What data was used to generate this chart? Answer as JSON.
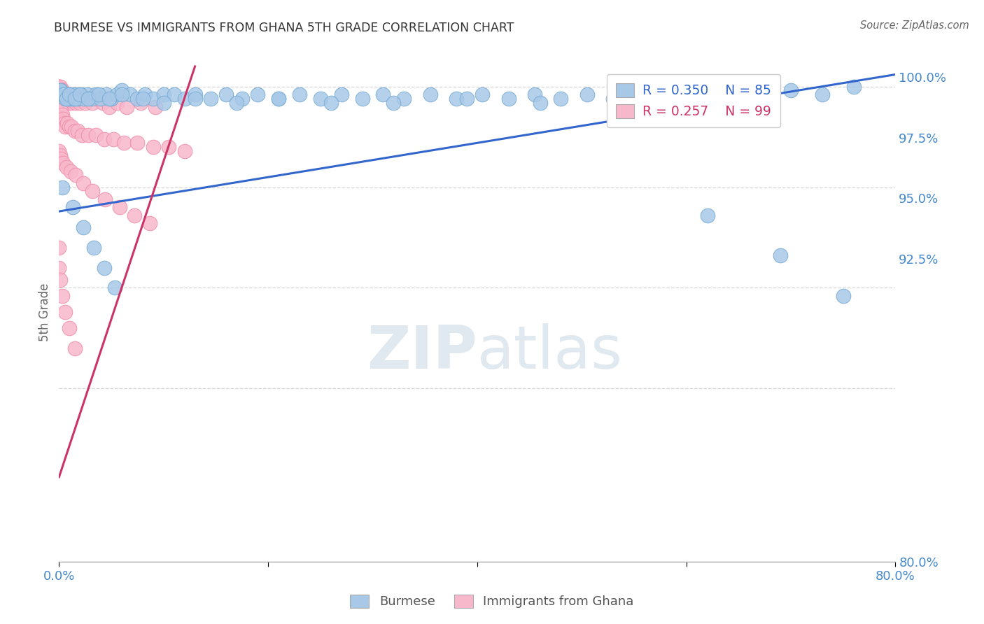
{
  "title": "BURMESE VS IMMIGRANTS FROM GHANA 5TH GRADE CORRELATION CHART",
  "source": "Source: ZipAtlas.com",
  "ylabel": "5th Grade",
  "legend_blue_r": "R = 0.350",
  "legend_blue_n": "N = 85",
  "legend_pink_r": "R = 0.257",
  "legend_pink_n": "N = 99",
  "blue_color": "#a8c8e8",
  "blue_edge_color": "#7aadd4",
  "pink_color": "#f8b8cc",
  "pink_edge_color": "#f090aa",
  "blue_line_color": "#3366cc",
  "pink_line_color": "#cc3366",
  "watermark_color": "#e0e8f0",
  "grid_color": "#cccccc",
  "right_tick_color": "#4488cc",
  "title_color": "#333333",
  "source_color": "#666666",
  "ylabel_color": "#666666",
  "bottom_label_color": "#555555",
  "xlim": [
    0.0,
    0.8
  ],
  "ylim": [
    0.882,
    1.006
  ],
  "yticks": [
    1.0,
    0.975,
    0.95,
    0.925
  ],
  "ytick_labels": [
    "100.0%",
    "97.5%",
    "95.0%",
    "92.5%"
  ],
  "yright_extra_tick": 0.8,
  "yright_extra_label": "80.0%",
  "xtick_left_label": "0.0%",
  "xtick_right_label": "80.0%",
  "blue_line_x": [
    0.0,
    0.8
  ],
  "blue_line_y": [
    0.969,
    1.003
  ],
  "pink_line_x": [
    0.0,
    0.13
  ],
  "pink_line_y": [
    0.903,
    1.005
  ],
  "blue_x": [
    0.002,
    0.003,
    0.005,
    0.006,
    0.008,
    0.009,
    0.011,
    0.012,
    0.014,
    0.016,
    0.018,
    0.021,
    0.024,
    0.027,
    0.031,
    0.035,
    0.04,
    0.045,
    0.05,
    0.055,
    0.06,
    0.068,
    0.075,
    0.082,
    0.09,
    0.1,
    0.11,
    0.12,
    0.13,
    0.145,
    0.16,
    0.175,
    0.19,
    0.21,
    0.23,
    0.25,
    0.27,
    0.29,
    0.31,
    0.33,
    0.355,
    0.38,
    0.405,
    0.43,
    0.455,
    0.48,
    0.505,
    0.53,
    0.555,
    0.58,
    0.61,
    0.64,
    0.67,
    0.7,
    0.73,
    0.76,
    0.001,
    0.004,
    0.007,
    0.01,
    0.015,
    0.02,
    0.028,
    0.038,
    0.048,
    0.06,
    0.08,
    0.1,
    0.13,
    0.17,
    0.21,
    0.26,
    0.32,
    0.39,
    0.46,
    0.54,
    0.62,
    0.69,
    0.75,
    0.003,
    0.013,
    0.023,
    0.033,
    0.043,
    0.053
  ],
  "blue_y": [
    0.999,
    0.998,
    0.998,
    0.997,
    0.998,
    0.997,
    0.998,
    0.997,
    0.997,
    0.998,
    0.997,
    0.998,
    0.997,
    0.998,
    0.997,
    0.998,
    0.997,
    0.998,
    0.997,
    0.998,
    0.999,
    0.998,
    0.997,
    0.998,
    0.997,
    0.998,
    0.998,
    0.997,
    0.998,
    0.997,
    0.998,
    0.997,
    0.998,
    0.997,
    0.998,
    0.997,
    0.998,
    0.997,
    0.998,
    0.997,
    0.998,
    0.997,
    0.998,
    0.997,
    0.998,
    0.997,
    0.998,
    0.997,
    0.998,
    0.997,
    0.998,
    0.997,
    0.998,
    0.999,
    0.998,
    1.0,
    0.999,
    0.998,
    0.997,
    0.998,
    0.997,
    0.998,
    0.997,
    0.998,
    0.997,
    0.998,
    0.997,
    0.996,
    0.997,
    0.996,
    0.997,
    0.996,
    0.996,
    0.997,
    0.996,
    0.997,
    0.968,
    0.958,
    0.948,
    0.975,
    0.97,
    0.965,
    0.96,
    0.955,
    0.95
  ],
  "pink_x": [
    0.0,
    0.0,
    0.0,
    0.0,
    0.0,
    0.0,
    0.0,
    0.0,
    0.0,
    0.0,
    0.001,
    0.001,
    0.001,
    0.001,
    0.001,
    0.001,
    0.002,
    0.002,
    0.002,
    0.003,
    0.003,
    0.003,
    0.004,
    0.004,
    0.005,
    0.005,
    0.006,
    0.007,
    0.008,
    0.009,
    0.01,
    0.011,
    0.012,
    0.013,
    0.015,
    0.016,
    0.018,
    0.02,
    0.022,
    0.025,
    0.028,
    0.032,
    0.036,
    0.042,
    0.048,
    0.055,
    0.065,
    0.078,
    0.092,
    0.0,
    0.0,
    0.0,
    0.0,
    0.001,
    0.001,
    0.002,
    0.002,
    0.003,
    0.004,
    0.005,
    0.006,
    0.008,
    0.01,
    0.012,
    0.015,
    0.018,
    0.022,
    0.028,
    0.035,
    0.043,
    0.052,
    0.062,
    0.075,
    0.09,
    0.105,
    0.12,
    0.0,
    0.001,
    0.002,
    0.004,
    0.007,
    0.011,
    0.016,
    0.023,
    0.032,
    0.044,
    0.058,
    0.072,
    0.087,
    0.0,
    0.0,
    0.001,
    0.003,
    0.006,
    0.01,
    0.015
  ],
  "pink_y": [
    1.0,
    1.0,
    1.0,
    0.999,
    0.999,
    0.998,
    0.998,
    0.997,
    0.997,
    0.996,
    1.0,
    0.999,
    0.998,
    0.997,
    0.996,
    0.995,
    0.999,
    0.998,
    0.997,
    0.999,
    0.998,
    0.996,
    0.998,
    0.997,
    0.998,
    0.996,
    0.997,
    0.998,
    0.997,
    0.996,
    0.998,
    0.997,
    0.996,
    0.997,
    0.998,
    0.996,
    0.997,
    0.996,
    0.997,
    0.996,
    0.997,
    0.996,
    0.997,
    0.996,
    0.995,
    0.996,
    0.995,
    0.996,
    0.995,
    0.995,
    0.994,
    0.993,
    0.992,
    0.995,
    0.993,
    0.994,
    0.992,
    0.993,
    0.992,
    0.991,
    0.99,
    0.991,
    0.99,
    0.99,
    0.989,
    0.989,
    0.988,
    0.988,
    0.988,
    0.987,
    0.987,
    0.986,
    0.986,
    0.985,
    0.985,
    0.984,
    0.984,
    0.983,
    0.982,
    0.981,
    0.98,
    0.979,
    0.978,
    0.976,
    0.974,
    0.972,
    0.97,
    0.968,
    0.966,
    0.96,
    0.955,
    0.952,
    0.948,
    0.944,
    0.94,
    0.935
  ]
}
